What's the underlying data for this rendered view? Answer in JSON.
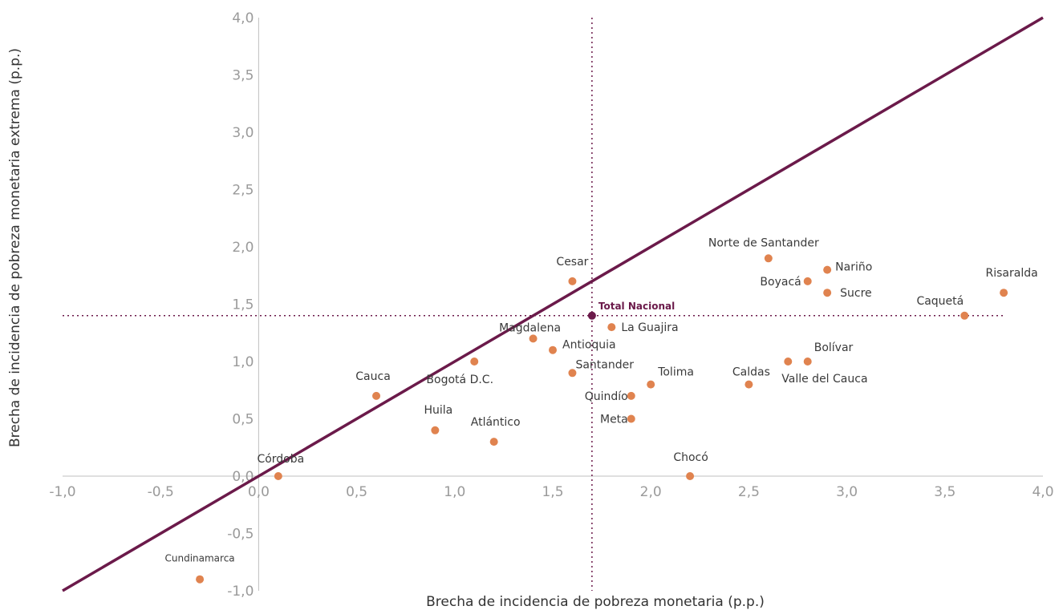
{
  "chart_data": {
    "type": "scatter",
    "xlabel": "Brecha de incidencia de pobreza monetaria (p.p.)",
    "ylabel": "Brecha de incidencia de pobreza monetaria extrema (p.p.)",
    "xlim": [
      -1.0,
      4.0
    ],
    "ylim": [
      -1.0,
      4.0
    ],
    "x_ticks": [
      "-1,0",
      "-0,5",
      "0,0",
      "0,5",
      "1,0",
      "1,5",
      "2,0",
      "2,5",
      "3,0",
      "3,5",
      "4,0"
    ],
    "y_ticks": [
      "-1,0",
      "-0,5",
      "0,0",
      "0,5",
      "1,0",
      "1,5",
      "2,0",
      "2,5",
      "3,0",
      "3,5",
      "4,0"
    ],
    "grid": false,
    "colors": {
      "points": "#e0834f",
      "reference": "#6b1a4a",
      "diagonal": "#6b1a4a",
      "axes": "#bfbfbf"
    },
    "reference_point": {
      "name": "Total Nacional",
      "x": 1.7,
      "y": 1.4
    },
    "diagonal": {
      "from": [
        -1.0,
        -1.0
      ],
      "to": [
        4.0,
        4.0
      ]
    },
    "points": [
      {
        "name": "Cundinamarca",
        "x": -0.3,
        "y": -0.9
      },
      {
        "name": "Córdoba",
        "x": 0.1,
        "y": 0.0
      },
      {
        "name": "Cauca",
        "x": 0.6,
        "y": 0.7
      },
      {
        "name": "Huila",
        "x": 0.9,
        "y": 0.4
      },
      {
        "name": "Bogotá D.C.",
        "x": 1.1,
        "y": 1.0
      },
      {
        "name": "Atlántico",
        "x": 1.2,
        "y": 0.3
      },
      {
        "name": "Magdalena",
        "x": 1.4,
        "y": 1.2
      },
      {
        "name": "Antioquia",
        "x": 1.5,
        "y": 1.1
      },
      {
        "name": "Cesar",
        "x": 1.6,
        "y": 1.7
      },
      {
        "name": "Santander",
        "x": 1.6,
        "y": 0.9
      },
      {
        "name": "La Guajira",
        "x": 1.8,
        "y": 1.3
      },
      {
        "name": "Quindío",
        "x": 1.9,
        "y": 0.7
      },
      {
        "name": "Meta",
        "x": 1.9,
        "y": 0.5
      },
      {
        "name": "Tolima",
        "x": 2.0,
        "y": 0.8
      },
      {
        "name": "Chocó",
        "x": 2.2,
        "y": 0.0
      },
      {
        "name": "Caldas",
        "x": 2.5,
        "y": 0.8
      },
      {
        "name": "Norte de Santander",
        "x": 2.6,
        "y": 1.9
      },
      {
        "name": "Valle del Cauca",
        "x": 2.7,
        "y": 1.0
      },
      {
        "name": "Bolívar",
        "x": 2.8,
        "y": 1.0
      },
      {
        "name": "Boyacá",
        "x": 2.8,
        "y": 1.7
      },
      {
        "name": "Nariño",
        "x": 2.9,
        "y": 1.8
      },
      {
        "name": "Sucre",
        "x": 2.9,
        "y": 1.6
      },
      {
        "name": "Caquetá",
        "x": 3.6,
        "y": 1.4
      },
      {
        "name": "Risaralda",
        "x": 3.8,
        "y": 1.6
      }
    ]
  }
}
